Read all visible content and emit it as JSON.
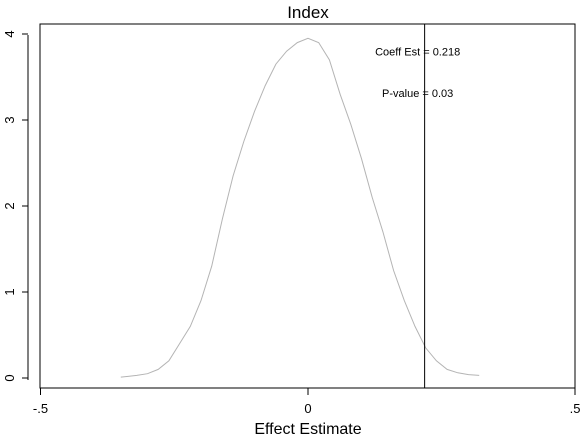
{
  "chart_data": {
    "type": "line",
    "title": "Index",
    "xlabel": "Effect Estimate",
    "ylabel": "",
    "xlim": [
      -0.5,
      0.5
    ],
    "ylim": [
      0,
      4
    ],
    "x_ticks": [
      -0.5,
      0,
      0.5
    ],
    "x_tick_labels": [
      "-.5",
      "0",
      ".5"
    ],
    "y_ticks": [
      0,
      1,
      2,
      3,
      4
    ],
    "y_tick_labels": [
      "0",
      "1",
      "2",
      "3",
      "4"
    ],
    "grid": false,
    "series": [
      {
        "color": "#b4b4b4",
        "x": [
          -0.35,
          -0.32,
          -0.3,
          -0.28,
          -0.26,
          -0.24,
          -0.22,
          -0.2,
          -0.18,
          -0.16,
          -0.14,
          -0.12,
          -0.1,
          -0.08,
          -0.06,
          -0.04,
          -0.02,
          0.0,
          0.02,
          0.04,
          0.06,
          0.08,
          0.1,
          0.12,
          0.14,
          0.16,
          0.18,
          0.2,
          0.22,
          0.24,
          0.26,
          0.28,
          0.3,
          0.32
        ],
        "y": [
          0.01,
          0.03,
          0.05,
          0.1,
          0.2,
          0.4,
          0.6,
          0.9,
          1.3,
          1.85,
          2.35,
          2.75,
          3.1,
          3.4,
          3.65,
          3.8,
          3.9,
          3.95,
          3.9,
          3.7,
          3.3,
          2.95,
          2.55,
          2.1,
          1.7,
          1.25,
          0.9,
          0.6,
          0.35,
          0.2,
          0.1,
          0.06,
          0.04,
          0.03
        ]
      }
    ],
    "vline": {
      "x": 0.218,
      "color": "#000000"
    },
    "annotations": [
      {
        "text": "Coeff Est = 0.218",
        "x": 0.205,
        "y": 3.75
      },
      {
        "text": "P-value = 0.03",
        "x": 0.205,
        "y": 3.27
      }
    ]
  }
}
